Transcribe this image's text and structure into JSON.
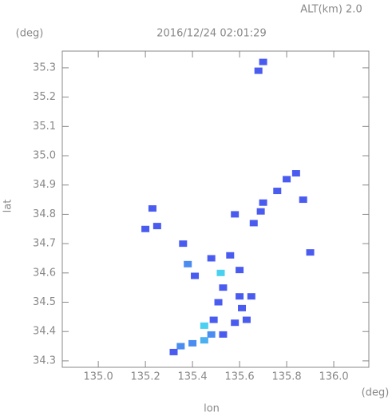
{
  "chart_data": {
    "type": "scatter",
    "title": "2016/12/24 02:01:29",
    "annotation": "ALT(km)  2.0",
    "y_unit": "(deg)",
    "x_unit": "(deg)",
    "xlabel": "lon",
    "ylabel": "lat",
    "xlim": [
      134.847,
      136.149
    ],
    "ylim": [
      34.278,
      35.357
    ],
    "xticks": [
      {
        "value": 135,
        "label": "135.0"
      },
      135.2,
      135.4,
      135.6,
      135.8,
      {
        "value": 136,
        "label": "136.0"
      }
    ],
    "yticks": [
      34.3,
      34.4,
      34.5,
      34.6,
      34.7,
      34.8,
      34.9,
      {
        "value": 35,
        "label": "35.0"
      },
      35.1,
      35.2,
      35.3
    ],
    "x": [
      135.7,
      135.68,
      135.84,
      135.8,
      135.76,
      135.87,
      135.7,
      135.69,
      135.66,
      135.58,
      135.23,
      135.25,
      135.2,
      135.9,
      135.36,
      135.38,
      135.41,
      135.48,
      135.56,
      135.6,
      135.52,
      135.53,
      135.6,
      135.51,
      135.61,
      135.49,
      135.58,
      135.63,
      135.48,
      135.45,
      135.4,
      135.35,
      135.32,
      135.53,
      135.45,
      135.65
    ],
    "values": [
      35.32,
      35.29,
      34.94,
      34.92,
      34.88,
      34.85,
      34.84,
      34.81,
      34.77,
      34.8,
      34.82,
      34.76,
      34.75,
      34.67,
      34.7,
      34.63,
      34.59,
      34.65,
      34.66,
      34.61,
      34.6,
      34.55,
      34.52,
      34.5,
      34.48,
      34.44,
      34.43,
      34.44,
      34.39,
      34.37,
      34.36,
      34.35,
      34.33,
      34.39,
      34.42,
      34.52
    ],
    "colors": [
      "#4a5cf0",
      "#4a5cf0",
      "#4a5cf0",
      "#4a5cf0",
      "#4a5cf0",
      "#4a5cf0",
      "#4a5cf0",
      "#4a5cf0",
      "#4a5cf0",
      "#4a5cf0",
      "#4a5cf0",
      "#4a5cf0",
      "#4a5cf0",
      "#4a5cf0",
      "#4a5cf0",
      "#4a8cf0",
      "#4a5cf0",
      "#4a5cf0",
      "#4a5cf0",
      "#4a5cf0",
      "#4ad0f0",
      "#4a5cf0",
      "#4a5cf0",
      "#4a5cf0",
      "#4a5cf0",
      "#4a5cf0",
      "#4a5cf0",
      "#4a5cf0",
      "#4a8cf0",
      "#4ab0f0",
      "#4a8cf0",
      "#4a8cf0",
      "#4a5cf0",
      "#4a5cf0",
      "#4ad0f0",
      "#4a5cf0"
    ]
  }
}
